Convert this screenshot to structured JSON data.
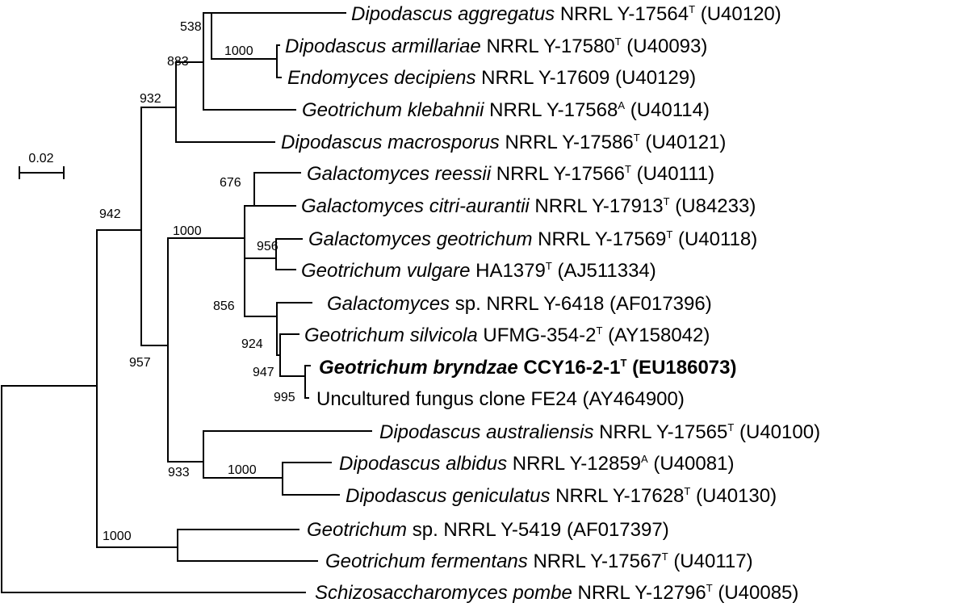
{
  "scale_bar": {
    "label": "0.02"
  },
  "taxa": [
    {
      "name": "Dipodascus aggregatus",
      "strain": "NRRL Y-17564",
      "sup": "T",
      "accession": "(U40120)"
    },
    {
      "name": "Dipodascus armillariae",
      "strain": "NRRL Y-17580",
      "sup": "T",
      "accession": "(U40093)"
    },
    {
      "name": "Endomyces decipiens",
      "strain": "NRRL Y-17609",
      "sup": "",
      "accession": "(U40129)"
    },
    {
      "name": "Geotrichum klebahnii",
      "strain": "NRRL Y-17568",
      "sup": "A",
      "accession": "(U40114)"
    },
    {
      "name": "Dipodascus macrosporus",
      "strain": "NRRL Y-17586",
      "sup": "T",
      "accession": "(U40121)"
    },
    {
      "name": "Galactomyces reessii",
      "strain": "NRRL Y-17566",
      "sup": "T",
      "accession": "(U40111)"
    },
    {
      "name": "Galactomyces citri-aurantii",
      "strain": "NRRL Y-17913",
      "sup": "T",
      "accession": "(U84233)"
    },
    {
      "name": "Galactomyces geotrichum",
      "strain": "NRRL Y-17569",
      "sup": "T",
      "accession": "(U40118)"
    },
    {
      "name": "Geotrichum vulgare",
      "strain": "HA1379",
      "sup": "T",
      "accession": "(AJ511334)"
    },
    {
      "name": "Galactomyces",
      "strain": "sp. NRRL Y-6418",
      "sup": "",
      "accession": "(AF017396)"
    },
    {
      "name": "Geotrichum silvicola",
      "strain": "UFMG-354-2",
      "sup": "T",
      "accession": "(AY158042)"
    },
    {
      "name": "Geotrichum bryndzae",
      "strain": "CCY16-2-1",
      "sup": "T",
      "accession": "(EU186073)",
      "highlight": true
    },
    {
      "name": "",
      "strain": "Uncultured fungus clone FE24",
      "sup": "",
      "accession": "(AY464900)"
    },
    {
      "name": "Dipodascus australiensis",
      "strain": "NRRL Y-17565",
      "sup": "T",
      "accession": "(U40100)"
    },
    {
      "name": "Dipodascus albidus",
      "strain": "NRRL Y-12859",
      "sup": "A",
      "accession": "(U40081)"
    },
    {
      "name": "Dipodascus geniculatus",
      "strain": "NRRL Y-17628",
      "sup": "T",
      "accession": "(U40130)"
    },
    {
      "name": "Geotrichum",
      "strain": "sp. NRRL Y-5419",
      "sup": "",
      "accession": "(AF017397)"
    },
    {
      "name": "Geotrichum fermentans",
      "strain": "NRRL Y-17567",
      "sup": "T",
      "accession": "(U40117)"
    },
    {
      "name": "Schizosaccharomyces pombe",
      "strain": "NRRL Y-12796",
      "sup": "T",
      "accession": "(U40085)"
    }
  ],
  "bootstrap": [
    "538",
    "1000",
    "883",
    "932",
    "676",
    "956",
    "1000",
    "856",
    "924",
    "947",
    "995",
    "942",
    "957",
    "933",
    "1000",
    "1000"
  ]
}
